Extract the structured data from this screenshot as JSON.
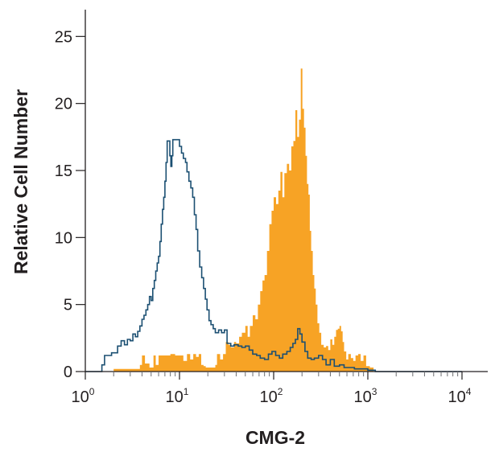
{
  "chart_data": {
    "type": "area",
    "title": "",
    "xlabel": "CMG-2",
    "ylabel": "Relative Cell Number",
    "x_scale": "log",
    "xlim": [
      1,
      10000
    ],
    "ylim": [
      0,
      27
    ],
    "x_ticks": [
      {
        "base": "10",
        "exp": "0",
        "value": 1
      },
      {
        "base": "10",
        "exp": "1",
        "value": 10
      },
      {
        "base": "10",
        "exp": "2",
        "value": 100
      },
      {
        "base": "10",
        "exp": "3",
        "value": 1000
      },
      {
        "base": "10",
        "exp": "4",
        "value": 10000
      }
    ],
    "y_ticks": [
      0,
      5,
      10,
      15,
      20,
      25
    ],
    "grid": false,
    "legend": "none",
    "series": [
      {
        "style": "outline",
        "color": "#1b4f72",
        "points": [
          [
            1,
            0.0
          ],
          [
            1.4,
            0.0
          ],
          [
            1.5,
            0.5
          ],
          [
            1.6,
            1.2
          ],
          [
            1.8,
            1.2
          ],
          [
            1.9,
            1.4
          ],
          [
            2.0,
            1.4
          ],
          [
            2.2,
            1.9
          ],
          [
            2.4,
            2.3
          ],
          [
            2.6,
            2.0
          ],
          [
            2.8,
            2.4
          ],
          [
            3.0,
            2.3
          ],
          [
            3.2,
            2.8
          ],
          [
            3.4,
            2.6
          ],
          [
            3.6,
            3.0
          ],
          [
            3.8,
            3.4
          ],
          [
            4.0,
            3.9
          ],
          [
            4.2,
            4.2
          ],
          [
            4.4,
            4.6
          ],
          [
            4.6,
            5.0
          ],
          [
            4.8,
            5.6
          ],
          [
            5.0,
            5.3
          ],
          [
            5.2,
            6.2
          ],
          [
            5.4,
            6.8
          ],
          [
            5.6,
            7.5
          ],
          [
            5.8,
            8.1
          ],
          [
            6.0,
            8.6
          ],
          [
            6.2,
            9.7
          ],
          [
            6.4,
            11.0
          ],
          [
            6.6,
            12.1
          ],
          [
            6.8,
            13.0
          ],
          [
            7.0,
            14.2
          ],
          [
            7.2,
            15.6
          ],
          [
            7.4,
            17.2
          ],
          [
            7.7,
            17.2
          ],
          [
            7.9,
            16.1
          ],
          [
            8.1,
            15.3
          ],
          [
            8.3,
            16.1
          ],
          [
            8.5,
            17.3
          ],
          [
            9.0,
            17.3
          ],
          [
            9.6,
            17.3
          ],
          [
            10.0,
            16.8
          ],
          [
            10.5,
            16.3
          ],
          [
            11.0,
            15.9
          ],
          [
            11.6,
            15.6
          ],
          [
            12.0,
            14.9
          ],
          [
            12.6,
            14.2
          ],
          [
            13.2,
            13.7
          ],
          [
            13.8,
            13.0
          ],
          [
            14.4,
            11.7
          ],
          [
            15.0,
            10.6
          ],
          [
            15.6,
            9.0
          ],
          [
            16.4,
            7.8
          ],
          [
            17.2,
            7.0
          ],
          [
            18.0,
            6.2
          ],
          [
            18.8,
            5.4
          ],
          [
            19.6,
            4.6
          ],
          [
            20.6,
            3.8
          ],
          [
            21.6,
            3.5
          ],
          [
            22.8,
            3.2
          ],
          [
            24.0,
            2.9
          ],
          [
            26.0,
            3.1
          ],
          [
            28.0,
            2.9
          ],
          [
            30.0,
            3.1
          ],
          [
            32.0,
            2.1
          ],
          [
            35.0,
            1.9
          ],
          [
            38.0,
            2.0
          ],
          [
            42.0,
            1.9
          ],
          [
            46.0,
            1.8
          ],
          [
            50.0,
            1.9
          ],
          [
            55.0,
            1.6
          ],
          [
            60.0,
            1.3
          ],
          [
            66.0,
            1.2
          ],
          [
            72.0,
            1.0
          ],
          [
            80.0,
            0.9
          ],
          [
            88.0,
            1.3
          ],
          [
            96.0,
            1.5
          ],
          [
            105.0,
            1.2
          ],
          [
            115.0,
            1.0
          ],
          [
            125.0,
            1.3
          ],
          [
            138.0,
            1.5
          ],
          [
            150.0,
            1.8
          ],
          [
            160.0,
            2.1
          ],
          [
            170.0,
            2.4
          ],
          [
            180.0,
            3.2
          ],
          [
            190.0,
            2.8
          ],
          [
            200.0,
            2.2
          ],
          [
            215.0,
            1.5
          ],
          [
            230.0,
            1.0
          ],
          [
            250.0,
            0.9
          ],
          [
            270.0,
            1.0
          ],
          [
            300.0,
            1.2
          ],
          [
            330.0,
            0.9
          ],
          [
            360.0,
            0.5
          ],
          [
            400.0,
            0.9
          ],
          [
            440.0,
            0.4
          ],
          [
            500.0,
            0.5
          ],
          [
            560.0,
            0.3
          ],
          [
            640.0,
            0.3
          ],
          [
            720.0,
            0.2
          ],
          [
            800.0,
            0.2
          ],
          [
            900.0,
            0.2
          ],
          [
            1000.0,
            0.1
          ],
          [
            1200.0,
            0.0
          ],
          [
            10000.0,
            0.0
          ]
        ]
      },
      {
        "style": "filled",
        "color": "#f7a325",
        "points": [
          [
            1,
            0.0
          ],
          [
            1.8,
            0.0
          ],
          [
            2.0,
            0.2
          ],
          [
            3.5,
            0.2
          ],
          [
            3.8,
            0.5
          ],
          [
            4.0,
            1.2
          ],
          [
            4.3,
            0.6
          ],
          [
            4.8,
            0.3
          ],
          [
            5.3,
            1.2
          ],
          [
            5.6,
            0.5
          ],
          [
            6.0,
            1.2
          ],
          [
            7.0,
            1.2
          ],
          [
            8.0,
            1.3
          ],
          [
            9.0,
            1.2
          ],
          [
            10.0,
            1.2
          ],
          [
            11.0,
            0.8
          ],
          [
            12.0,
            1.3
          ],
          [
            13.0,
            0.9
          ],
          [
            14.0,
            1.3
          ],
          [
            15.0,
            1.1
          ],
          [
            16.0,
            1.3
          ],
          [
            17.0,
            0.5
          ],
          [
            18.0,
            0.4
          ],
          [
            19.0,
            0.3
          ],
          [
            20.0,
            0.3
          ],
          [
            22.0,
            0.3
          ],
          [
            24.0,
            0.5
          ],
          [
            25.0,
            1.3
          ],
          [
            27.0,
            0.9
          ],
          [
            29.0,
            1.3
          ],
          [
            31.0,
            2.2
          ],
          [
            33.0,
            2.0
          ],
          [
            35.0,
            1.8
          ],
          [
            38.0,
            2.2
          ],
          [
            40.0,
            2.1
          ],
          [
            43.0,
            2.6
          ],
          [
            46.0,
            2.9
          ],
          [
            50.0,
            3.4
          ],
          [
            53.0,
            2.6
          ],
          [
            56.0,
            3.4
          ],
          [
            60.0,
            4.2
          ],
          [
            64.0,
            3.9
          ],
          [
            68.0,
            5.0
          ],
          [
            72.0,
            6.0
          ],
          [
            76.0,
            6.8
          ],
          [
            80.0,
            7.2
          ],
          [
            85.0,
            9.0
          ],
          [
            90.0,
            11.0
          ],
          [
            95.0,
            12.0
          ],
          [
            100.0,
            13.0
          ],
          [
            106.0,
            12.5
          ],
          [
            112.0,
            13.5
          ],
          [
            118.0,
            14.9
          ],
          [
            124.0,
            13.0
          ],
          [
            130.0,
            14.8
          ],
          [
            138.0,
            15.5
          ],
          [
            146.0,
            15.0
          ],
          [
            154.0,
            16.8
          ],
          [
            162.0,
            17.2
          ],
          [
            170.0,
            19.5
          ],
          [
            178.0,
            17.5
          ],
          [
            186.0,
            18.8
          ],
          [
            194.0,
            22.6
          ],
          [
            202.0,
            19.6
          ],
          [
            210.0,
            18.2
          ],
          [
            218.0,
            16.1
          ],
          [
            226.0,
            14.0
          ],
          [
            234.0,
            13.2
          ],
          [
            242.0,
            10.5
          ],
          [
            250.0,
            9.0
          ],
          [
            260.0,
            7.2
          ],
          [
            270.0,
            6.2
          ],
          [
            280.0,
            5.0
          ],
          [
            292.0,
            3.6
          ],
          [
            305.0,
            2.9
          ],
          [
            320.0,
            2.0
          ],
          [
            340.0,
            1.8
          ],
          [
            360.0,
            1.9
          ],
          [
            380.0,
            1.6
          ],
          [
            400.0,
            2.4
          ],
          [
            420.0,
            2.0
          ],
          [
            440.0,
            2.6
          ],
          [
            460.0,
            3.1
          ],
          [
            480.0,
            3.2
          ],
          [
            500.0,
            3.4
          ],
          [
            520.0,
            3.0
          ],
          [
            540.0,
            2.2
          ],
          [
            560.0,
            1.5
          ],
          [
            590.0,
            0.9
          ],
          [
            620.0,
            1.3
          ],
          [
            660.0,
            1.0
          ],
          [
            700.0,
            0.8
          ],
          [
            740.0,
            1.2
          ],
          [
            790.0,
            1.3
          ],
          [
            840.0,
            0.8
          ],
          [
            900.0,
            1.2
          ],
          [
            960.0,
            0.4
          ],
          [
            1050.0,
            0.3
          ],
          [
            1150.0,
            0.0
          ],
          [
            10000.0,
            0.0
          ]
        ]
      }
    ]
  }
}
